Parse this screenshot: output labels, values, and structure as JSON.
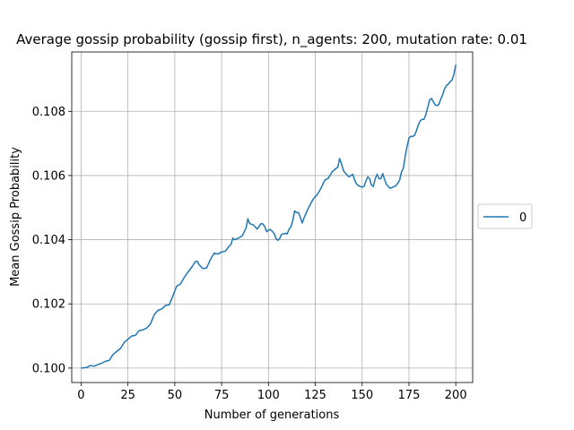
{
  "chart_data": {
    "type": "line",
    "title": "Average gossip probability (gossip first), n_agents: 200, mutation rate: 0.01",
    "xlabel": "Number of generations",
    "ylabel": "Mean Gossip Probability",
    "xlim": [
      -5,
      209
    ],
    "ylim": [
      0.09955,
      0.10985
    ],
    "x_ticks": [
      0,
      25,
      50,
      75,
      100,
      125,
      150,
      175,
      200
    ],
    "x_tick_labels": [
      "0",
      "25",
      "50",
      "75",
      "100",
      "125",
      "150",
      "175",
      "200"
    ],
    "y_ticks": [
      0.1,
      0.102,
      0.104,
      0.106,
      0.108
    ],
    "y_tick_labels": [
      "0.100",
      "0.102",
      "0.104",
      "0.106",
      "0.108"
    ],
    "grid": true,
    "legend_position": "outside-right",
    "series": [
      {
        "name": "0",
        "color": "#1f77b4",
        "points": [
          [
            0,
            0.1
          ],
          [
            3,
            0.10002
          ],
          [
            5,
            0.10008
          ],
          [
            7,
            0.10006
          ],
          [
            9,
            0.10011
          ],
          [
            11,
            0.10015
          ],
          [
            13,
            0.10021
          ],
          [
            15,
            0.10024
          ],
          [
            17,
            0.10042
          ],
          [
            19,
            0.10052
          ],
          [
            21,
            0.10061
          ],
          [
            23,
            0.1008
          ],
          [
            25,
            0.1009
          ],
          [
            27,
            0.101
          ],
          [
            29,
            0.10102
          ],
          [
            31,
            0.10117
          ],
          [
            33,
            0.10119
          ],
          [
            35,
            0.10125
          ],
          [
            37,
            0.10137
          ],
          [
            39,
            0.10166
          ],
          [
            41,
            0.1018
          ],
          [
            43,
            0.10184
          ],
          [
            45,
            0.10195
          ],
          [
            47,
            0.10197
          ],
          [
            49,
            0.10225
          ],
          [
            51,
            0.10255
          ],
          [
            53,
            0.10262
          ],
          [
            55,
            0.10282
          ],
          [
            57,
            0.10299
          ],
          [
            59,
            0.10314
          ],
          [
            61,
            0.10332
          ],
          [
            62,
            0.10333
          ],
          [
            63,
            0.10322
          ],
          [
            65,
            0.1031
          ],
          [
            67,
            0.10312
          ],
          [
            69,
            0.10338
          ],
          [
            71,
            0.10358
          ],
          [
            73,
            0.10355
          ],
          [
            75,
            0.10362
          ],
          [
            77,
            0.10364
          ],
          [
            79,
            0.1038
          ],
          [
            80,
            0.10385
          ],
          [
            81,
            0.10405
          ],
          [
            82,
            0.104
          ],
          [
            84,
            0.10405
          ],
          [
            86,
            0.10412
          ],
          [
            88,
            0.10436
          ],
          [
            89,
            0.10465
          ],
          [
            90,
            0.1045
          ],
          [
            92,
            0.10446
          ],
          [
            94,
            0.10433
          ],
          [
            96,
            0.1045
          ],
          [
            97,
            0.10449
          ],
          [
            98,
            0.10441
          ],
          [
            99,
            0.10425
          ],
          [
            100,
            0.1043
          ],
          [
            101,
            0.10432
          ],
          [
            103,
            0.1042
          ],
          [
            104,
            0.10404
          ],
          [
            105,
            0.10398
          ],
          [
            106,
            0.10404
          ],
          [
            107,
            0.10416
          ],
          [
            109,
            0.1042
          ],
          [
            110,
            0.10418
          ],
          [
            111,
            0.10433
          ],
          [
            112,
            0.1044
          ],
          [
            113,
            0.1046
          ],
          [
            114,
            0.1049
          ],
          [
            115,
            0.10484
          ],
          [
            116,
            0.10485
          ],
          [
            117,
            0.1047
          ],
          [
            118,
            0.10452
          ],
          [
            119,
            0.10468
          ],
          [
            121,
            0.10495
          ],
          [
            122,
            0.10506
          ],
          [
            124,
            0.10528
          ],
          [
            126,
            0.1054
          ],
          [
            128,
            0.1056
          ],
          [
            130,
            0.10585
          ],
          [
            132,
            0.10592
          ],
          [
            134,
            0.10612
          ],
          [
            135,
            0.10616
          ],
          [
            136,
            0.10622
          ],
          [
            137,
            0.10626
          ],
          [
            138,
            0.10653
          ],
          [
            139,
            0.10636
          ],
          [
            140,
            0.10616
          ],
          [
            141,
            0.10608
          ],
          [
            143,
            0.10596
          ],
          [
            145,
            0.10604
          ],
          [
            146,
            0.10586
          ],
          [
            147,
            0.10574
          ],
          [
            148,
            0.10568
          ],
          [
            150,
            0.10564
          ],
          [
            151,
            0.10566
          ],
          [
            152,
            0.10582
          ],
          [
            153,
            0.10596
          ],
          [
            154,
            0.1059
          ],
          [
            155,
            0.1057
          ],
          [
            156,
            0.10566
          ],
          [
            157,
            0.1059
          ],
          [
            158,
            0.10604
          ],
          [
            159,
            0.1059
          ],
          [
            160,
            0.1059
          ],
          [
            161,
            0.10606
          ],
          [
            162,
            0.10588
          ],
          [
            163,
            0.10572
          ],
          [
            164,
            0.10566
          ],
          [
            165,
            0.1056
          ],
          [
            166,
            0.10563
          ],
          [
            168,
            0.10568
          ],
          [
            170,
            0.10585
          ],
          [
            171,
            0.10611
          ],
          [
            172,
            0.10622
          ],
          [
            173,
            0.1066
          ],
          [
            174,
            0.1069
          ],
          [
            175,
            0.10717
          ],
          [
            176,
            0.10722
          ],
          [
            177,
            0.10722
          ],
          [
            178,
            0.10725
          ],
          [
            179,
            0.1074
          ],
          [
            180,
            0.10758
          ],
          [
            181,
            0.1077
          ],
          [
            182,
            0.10775
          ],
          [
            183,
            0.10775
          ],
          [
            184,
            0.1079
          ],
          [
            185,
            0.10812
          ],
          [
            186,
            0.10835
          ],
          [
            187,
            0.1084
          ],
          [
            188,
            0.1083
          ],
          [
            189,
            0.1082
          ],
          [
            190,
            0.10818
          ],
          [
            191,
            0.10822
          ],
          [
            192,
            0.10838
          ],
          [
            193,
            0.10852
          ],
          [
            194,
            0.1087
          ],
          [
            195,
            0.1088
          ],
          [
            196,
            0.10885
          ],
          [
            197,
            0.10893
          ],
          [
            198,
            0.10897
          ],
          [
            199,
            0.10915
          ],
          [
            200,
            0.10945
          ]
        ]
      }
    ]
  }
}
